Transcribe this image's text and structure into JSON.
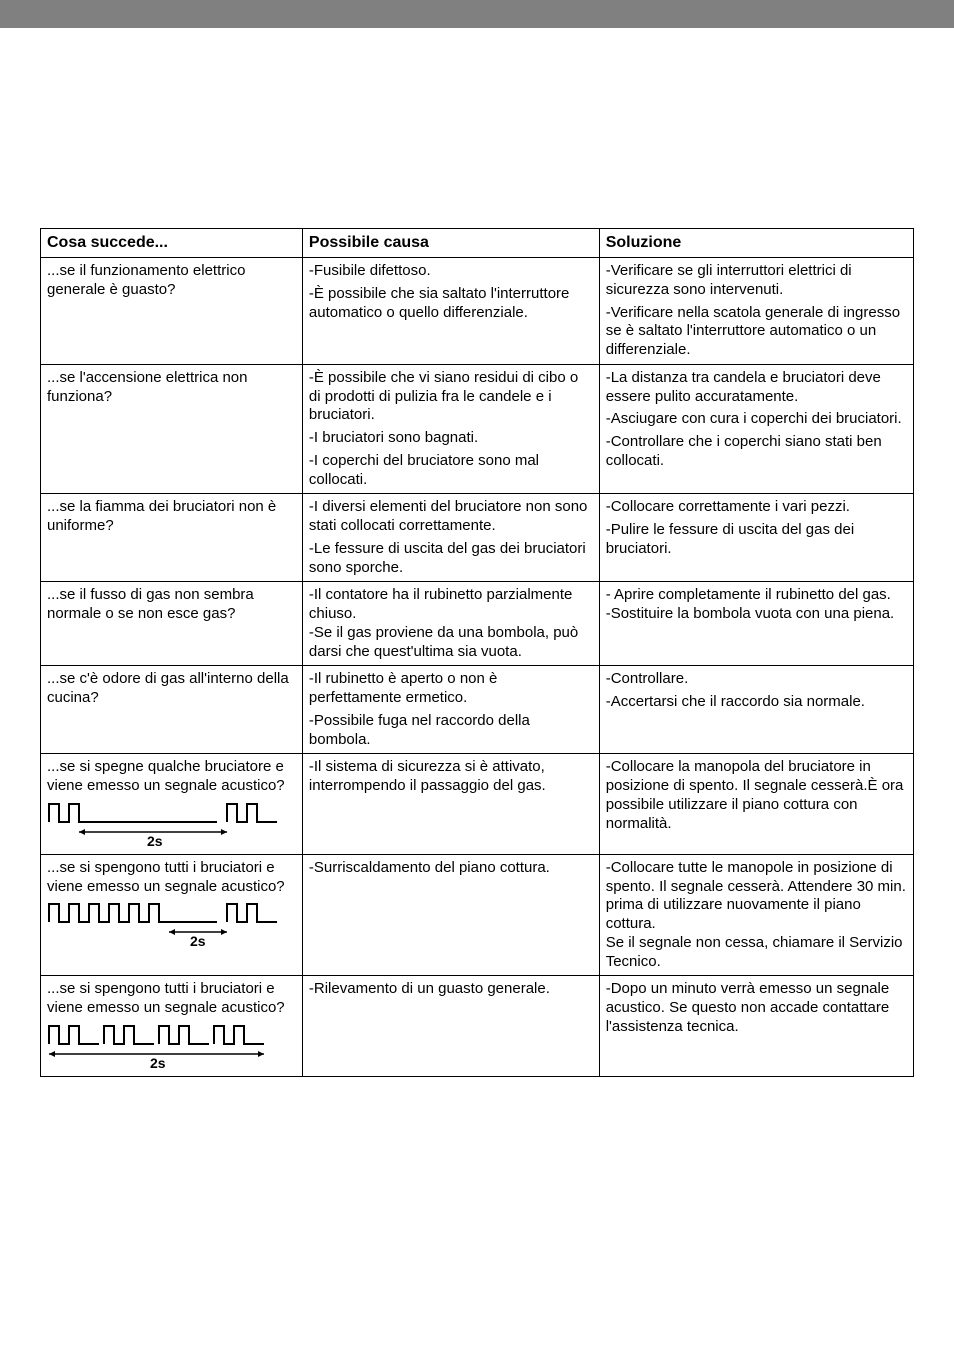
{
  "header": {
    "col1": "Cosa succede...",
    "col2": "Possibile causa",
    "col3": "Soluzione"
  },
  "rows": [
    {
      "problem": "...se il funzionamento elettrico generale è guasto?",
      "causes": [
        "-Fusibile difettoso.",
        "-È possibile che sia saltato l'interruttore automatico o quello differenziale."
      ],
      "solutions": [
        "-Verificare se gli interruttori elettrici di sicurezza sono intervenuti.",
        "-Verificare nella scatola generale di ingresso se è saltato l'interruttore automatico o un differenziale."
      ]
    },
    {
      "problem": "...se l'accensione elettrica non funziona?",
      "causes": [
        "-È possibile che vi siano residui di cibo o di prodotti di pulizia fra le candele e i bruciatori.",
        "-I bruciatori sono bagnati.",
        "-I coperchi del bruciatore sono mal collocati."
      ],
      "solutions": [
        "-La distanza tra candela e bruciatori deve essere pulito accuratamente.",
        "-Asciugare con cura i coperchi dei bruciatori.",
        "-Controllare che i coperchi siano stati ben collocati."
      ]
    },
    {
      "problem": "...se la fiamma dei bruciatori non è uniforme?",
      "causes": [
        "-I diversi elementi del bruciatore non sono stati collocati correttamente.",
        "-Le fessure di uscita del gas dei bruciatori sono sporche."
      ],
      "solutions": [
        "-Collocare correttamente i vari pezzi.",
        "-Pulire le fessure di uscita del gas dei bruciatori."
      ]
    },
    {
      "problem": "...se il fusso di gas non sembra normale o se non esce gas?",
      "causes": [
        "-Il contatore ha il rubinetto parzialmente chiuso.\n-Se il gas proviene da una bombola, può darsi che quest'ultima sia vuota."
      ],
      "solutions": [
        "- Aprire completamente il rubinetto del gas.\n-Sostituire la bombola vuota con una piena."
      ]
    },
    {
      "problem": "...se c'è odore di gas all'interno della cucina?",
      "causes": [
        "-Il rubinetto è aperto o non è perfettamente ermetico.",
        "-Possibile fuga nel raccordo della bombola."
      ],
      "solutions": [
        "-Controllare.",
        "-Accertarsi che il raccordo sia normale."
      ]
    },
    {
      "problem": "...se si spegne qualche bruciatore e viene emesso un segnale acustico?",
      "signal": "single",
      "causes": [
        "-Il sistema di sicurezza si è attivato, interrompendo il passaggio del gas."
      ],
      "solutions": [
        "-Collocare la manopola del bruciatore in posizione di spento. Il segnale cesserà.È ora possibile utilizzare il piano cottura con normalità."
      ]
    },
    {
      "problem": "...se si spengono tutti i bruciatori e viene emesso un segnale acustico?",
      "signal": "continuous",
      "causes": [
        "-Surriscaldamento del piano cottura."
      ],
      "solutions": [
        "-Collocare tutte le manopole in posizione di spento. Il segnale cesserà. Attendere 30 min. prima di utilizzare nuovamente il piano cottura.\nSe il segnale non cessa, chiamare il Servizio Tecnico."
      ]
    },
    {
      "problem": "...se si spengono tutti i bruciatori e viene emesso un segnale acustico?",
      "signal": "quad",
      "causes": [
        "-Rilevamento di un guasto generale."
      ],
      "solutions": [
        "-Dopo un minuto verrà emesso un segnale acustico. Se questo non accade contattare l'assistenza tecnica."
      ]
    }
  ],
  "signal_label": "2s",
  "colors": {
    "bar": "#808080",
    "border": "#000000",
    "text": "#000000",
    "bg": "#ffffff"
  }
}
